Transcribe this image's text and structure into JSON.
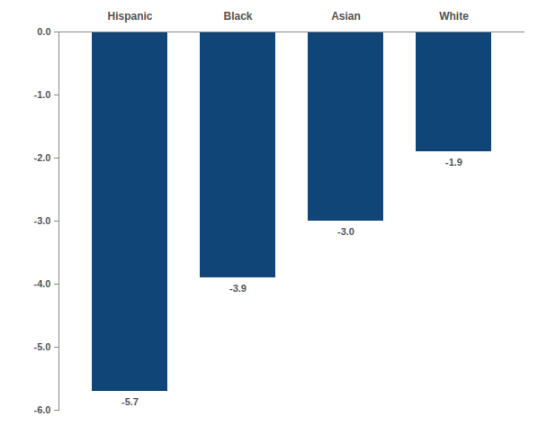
{
  "chart_data": {
    "type": "bar",
    "categories": [
      "Hispanic",
      "Black",
      "Asian",
      "White"
    ],
    "values": [
      -5.7,
      -3.9,
      -3.0,
      -1.9
    ],
    "value_labels": [
      "-5.7",
      "-3.9",
      "-3.0",
      "-1.9"
    ],
    "color": "#0f4577",
    "ylim": [
      -6,
      0
    ],
    "yticks": [
      {
        "value": 0,
        "label": "0.0"
      },
      {
        "value": -1,
        "label": "-1.0"
      },
      {
        "value": -2,
        "label": "-2.0"
      },
      {
        "value": -3,
        "label": "-3.0"
      },
      {
        "value": -4,
        "label": "-4.0"
      },
      {
        "value": -5,
        "label": "-5.0"
      },
      {
        "value": -6,
        "label": "-6.0"
      }
    ],
    "grid": false,
    "data_labels": true
  }
}
